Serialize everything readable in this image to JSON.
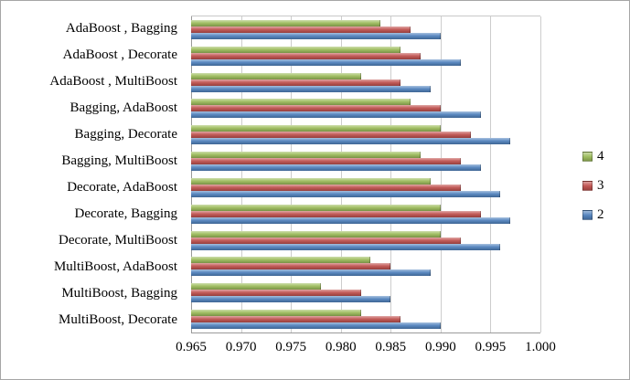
{
  "chart_data": {
    "type": "bar",
    "orientation": "horizontal",
    "title": "",
    "xlabel": "",
    "ylabel": "",
    "xlim": [
      0.965,
      1.0
    ],
    "xticks": [
      "0.965",
      "0.970",
      "0.975",
      "0.980",
      "0.985",
      "0.990",
      "0.995",
      "1.000"
    ],
    "grid": true,
    "legend_position": "right",
    "categories": [
      "AdaBoost , Bagging",
      "AdaBoost , Decorate",
      "AdaBoost , MultiBoost",
      "Bagging, AdaBoost",
      "Bagging, Decorate",
      "Bagging, MultiBoost",
      "Decorate, AdaBoost",
      "Decorate, Bagging",
      "Decorate, MultiBoost",
      "MultiBoost, AdaBoost",
      "MultiBoost, Bagging",
      "MultiBoost, Decorate"
    ],
    "series": [
      {
        "name": "4",
        "color": "#9BBB59",
        "values": [
          0.984,
          0.986,
          0.982,
          0.987,
          0.99,
          0.988,
          0.989,
          0.99,
          0.99,
          0.983,
          0.978,
          0.982
        ]
      },
      {
        "name": "3",
        "color": "#C0504D",
        "values": [
          0.987,
          0.988,
          0.986,
          0.99,
          0.993,
          0.992,
          0.992,
          0.994,
          0.992,
          0.985,
          0.982,
          0.986
        ]
      },
      {
        "name": "2",
        "color": "#4F81BD",
        "values": [
          0.99,
          0.992,
          0.989,
          0.994,
          0.997,
          0.994,
          0.996,
          0.997,
          0.996,
          0.989,
          0.985,
          0.99
        ]
      }
    ]
  }
}
